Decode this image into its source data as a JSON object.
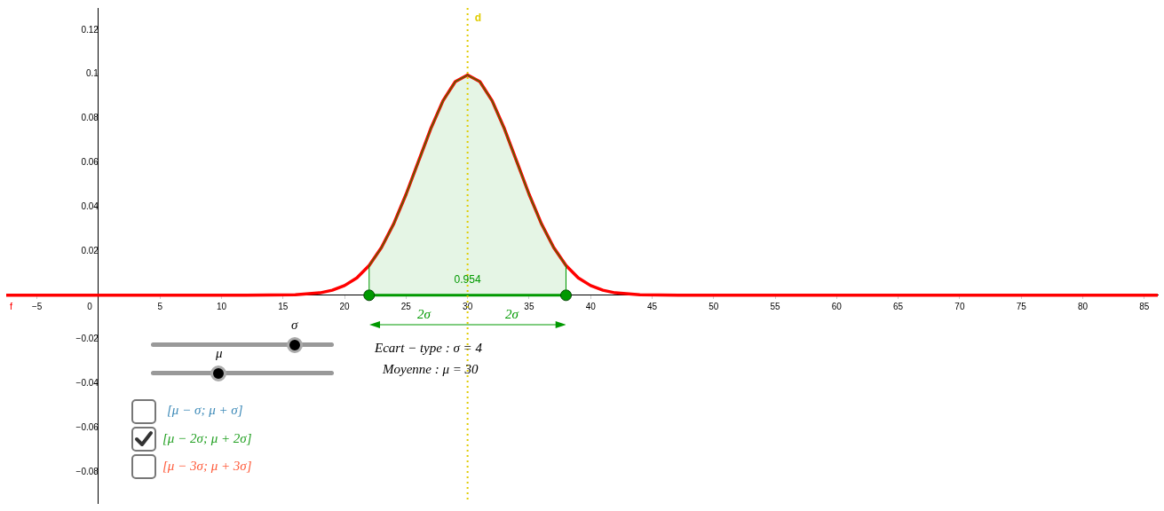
{
  "chart_data": {
    "type": "line",
    "xlim": [
      -7.5,
      86.1
    ],
    "ylim": [
      -0.094,
      0.13
    ],
    "xticks": [
      {
        "value": -5,
        "label": "−5"
      },
      0,
      5,
      10,
      15,
      20,
      25,
      30,
      35,
      40,
      45,
      50,
      55,
      60,
      65,
      70,
      75,
      80,
      85
    ],
    "yticks": [
      {
        "value": -0.08,
        "label": "−0.08"
      },
      {
        "value": -0.06,
        "label": "−0.06"
      },
      {
        "value": -0.04,
        "label": "−0.04"
      },
      {
        "value": -0.02,
        "label": "−0.02"
      },
      {
        "value": 0,
        "label": null
      },
      0.02,
      0.04,
      0.06,
      0.08,
      0.1,
      0.12
    ],
    "grid": false,
    "legend": false,
    "marker": "none",
    "series": [
      {
        "type": "area",
        "color": "#009900",
        "x": [
          22,
          22,
          23,
          24,
          25,
          26,
          27,
          28,
          29,
          30,
          31,
          32,
          33,
          34,
          35,
          36,
          37,
          38,
          38
        ],
        "values": [
          0,
          0.0135,
          0.0216,
          0.0324,
          0.0457,
          0.0605,
          0.0753,
          0.088,
          0.0967,
          0.0997,
          0.0967,
          0.088,
          0.0753,
          0.0605,
          0.0457,
          0.0324,
          0.0216,
          0.0135,
          0
        ]
      },
      {
        "name": "f",
        "color": "#ff0000",
        "x": [
          -7.5,
          12,
          16,
          18,
          19,
          20,
          21,
          22,
          23,
          24,
          25,
          26,
          27,
          28,
          29,
          30,
          31,
          32,
          33,
          34,
          35,
          36,
          37,
          38,
          39,
          40,
          41,
          42,
          44,
          48,
          86.1
        ],
        "values": [
          0,
          0,
          0.0002,
          0.0011,
          0.0023,
          0.0044,
          0.0079,
          0.0135,
          0.0216,
          0.0324,
          0.0457,
          0.0605,
          0.0753,
          0.088,
          0.0967,
          0.0997,
          0.0967,
          0.088,
          0.0753,
          0.0605,
          0.0457,
          0.0324,
          0.0216,
          0.0135,
          0.0079,
          0.0044,
          0.0023,
          0.0011,
          0.0002,
          0,
          0
        ]
      },
      {
        "type": "scatter",
        "marker": "circle",
        "color": "#009900",
        "x": [
          22,
          38
        ],
        "values": [
          0,
          0
        ]
      }
    ],
    "ref_lines": [
      {
        "axis": "x",
        "value": 30,
        "label": "d",
        "color": "#e0cc00",
        "line_style": "dotted"
      }
    ],
    "annotations": [
      {
        "text": "0.954",
        "x": 30,
        "y": 0.0055
      },
      "2σ",
      "2σ",
      "Ecart − type :  σ = 4",
      "Moyenne :  μ = 30",
      "σ",
      "μ",
      "[μ − σ; μ + σ]",
      "[μ − 2σ; μ + 2σ]",
      "[μ − 3σ; μ + 3σ]"
    ]
  }
}
